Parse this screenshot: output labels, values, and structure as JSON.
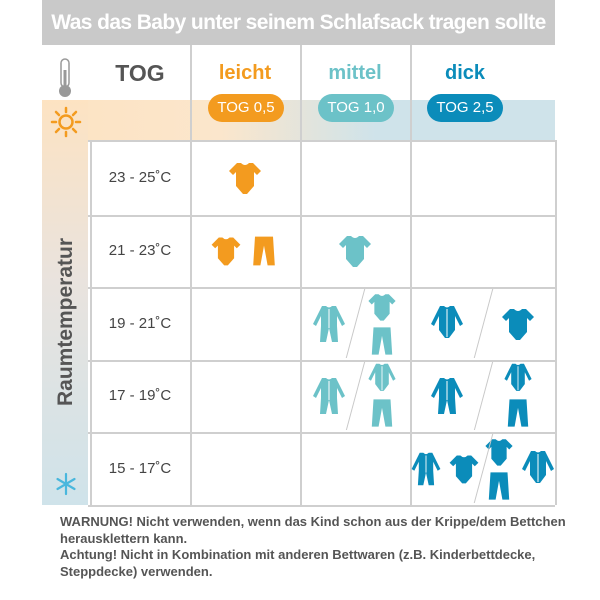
{
  "title": "Was das Baby unter seinem Schlafsack tragen sollte",
  "header": {
    "tog_label": "TOG",
    "thermometer_icon": "thermometer-icon"
  },
  "columns": [
    {
      "label": "leicht",
      "tog": "TOG 0,5",
      "color": "#f39b1f"
    },
    {
      "label": "mittel",
      "tog": "TOG 1,0",
      "color": "#6cc2c8"
    },
    {
      "label": "dick",
      "tog": "TOG 2,5",
      "color": "#0b8cba"
    }
  ],
  "side": {
    "label": "Raumtemperatur",
    "top_icon": "sun-icon",
    "bottom_icon": "snowflake-icon"
  },
  "rows": [
    {
      "temp": "23 - 25˚C",
      "cells": [
        [
          [
            "bodysuit"
          ]
        ],
        [],
        []
      ]
    },
    {
      "temp": "21 - 23˚C",
      "cells": [
        [
          [
            "bodysuit",
            "pants"
          ]
        ],
        [
          [
            "bodysuit"
          ]
        ],
        []
      ]
    },
    {
      "temp": "19 - 21˚C",
      "cells": [
        [],
        [
          [
            "sleepsuit"
          ],
          [
            [
              "bodysuit",
              "pants"
            ]
          ]
        ],
        [
          [
            "longsleeve"
          ],
          [
            "bodysuit"
          ]
        ]
      ]
    },
    {
      "temp": "17 - 19˚C",
      "cells": [
        [],
        [
          [
            "sleepsuit"
          ],
          [
            [
              "longsleeve",
              "pants"
            ]
          ]
        ],
        [
          [
            "sleepsuit"
          ],
          [
            [
              "longsleeve",
              "pants"
            ]
          ]
        ]
      ]
    },
    {
      "temp": "15 - 17˚C",
      "cells": [
        [],
        [],
        [
          [
            "sleepsuit",
            "bodysuit"
          ],
          [
            [
              "bodysuit",
              "pants"
            ],
            "longsleeve"
          ]
        ]
      ]
    }
  ],
  "warning": {
    "line1": "WARNUNG! Nicht verwenden, wenn das Kind schon aus der Krippe/dem Bettchen herausklettern kann.",
    "line2": "Achtung! Nicht in Kombination mit anderen Bettwaren (z.B. Kinderbettdecke, Steppdecke) verwenden."
  }
}
